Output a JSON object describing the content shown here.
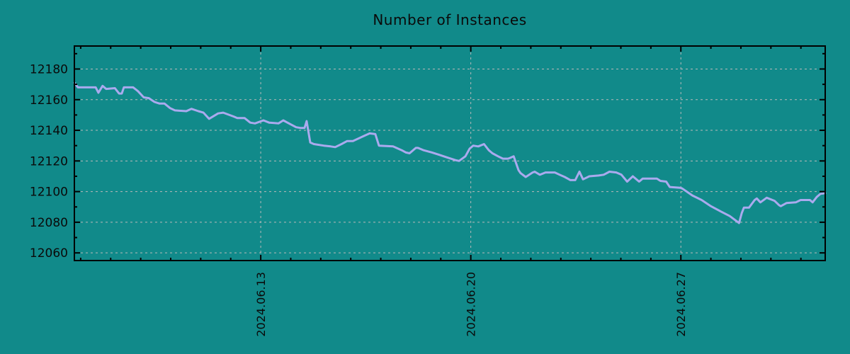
{
  "chart_data": {
    "type": "line",
    "title": "Number of Instances",
    "legend": "none",
    "grid": "dashed",
    "colors": {
      "background": "#118a8a",
      "line": "#aaaaee",
      "gridline": "#b9b9b9",
      "axis": "#000000",
      "text": "#0a0a0a"
    },
    "ylabel": "",
    "xlabel": "",
    "ylim": [
      12055,
      12195
    ],
    "yticks": [
      12060,
      12080,
      12100,
      12120,
      12140,
      12160,
      12180
    ],
    "ytick_minor_step": 10,
    "x_unit": "days since 2024-06-06",
    "xlim_days": [
      0.79,
      25.81
    ],
    "x_minor_ticks_days": [
      1,
      2,
      3,
      4,
      5,
      6,
      7,
      8,
      9,
      10,
      11,
      12,
      13,
      14,
      15,
      16,
      17,
      18,
      19,
      20,
      21,
      22,
      23,
      24,
      25
    ],
    "x_major_ticks": [
      {
        "day": 7,
        "label": "2024.06.13"
      },
      {
        "day": 14,
        "label": "2024.06.20"
      },
      {
        "day": 21,
        "label": "2024.06.27"
      }
    ],
    "series": [
      {
        "name": "instances",
        "points": [
          [
            0.79,
            12171
          ],
          [
            0.91,
            12168
          ],
          [
            1.5,
            12168
          ],
          [
            1.59,
            12164.5
          ],
          [
            1.73,
            12169
          ],
          [
            1.85,
            12167
          ],
          [
            2.14,
            12167.5
          ],
          [
            2.28,
            12164
          ],
          [
            2.37,
            12164
          ],
          [
            2.44,
            12168
          ],
          [
            2.75,
            12168
          ],
          [
            2.91,
            12165.5
          ],
          [
            3.1,
            12161.5
          ],
          [
            3.27,
            12161
          ],
          [
            3.46,
            12158.5
          ],
          [
            3.62,
            12157.5
          ],
          [
            3.79,
            12157.5
          ],
          [
            3.98,
            12154.5
          ],
          [
            4.14,
            12153
          ],
          [
            4.52,
            12152.5
          ],
          [
            4.69,
            12154
          ],
          [
            4.92,
            12152.5
          ],
          [
            5.09,
            12151.5
          ],
          [
            5.28,
            12147.5
          ],
          [
            5.58,
            12151
          ],
          [
            5.75,
            12151.5
          ],
          [
            6.1,
            12149
          ],
          [
            6.22,
            12148
          ],
          [
            6.46,
            12148
          ],
          [
            6.65,
            12145
          ],
          [
            6.81,
            12144.5
          ],
          [
            7.09,
            12146.5
          ],
          [
            7.28,
            12145
          ],
          [
            7.59,
            12144.5
          ],
          [
            7.75,
            12146.5
          ],
          [
            7.99,
            12144
          ],
          [
            8.18,
            12142
          ],
          [
            8.34,
            12141.5
          ],
          [
            8.46,
            12141.5
          ],
          [
            8.53,
            12146
          ],
          [
            8.65,
            12132
          ],
          [
            8.77,
            12131
          ],
          [
            9.1,
            12130
          ],
          [
            9.33,
            12129.5
          ],
          [
            9.48,
            12129
          ],
          [
            9.69,
            12131
          ],
          [
            9.88,
            12133
          ],
          [
            10.07,
            12133
          ],
          [
            10.35,
            12135.5
          ],
          [
            10.63,
            12138
          ],
          [
            10.82,
            12137.5
          ],
          [
            10.94,
            12130
          ],
          [
            11.41,
            12129.5
          ],
          [
            11.7,
            12127
          ],
          [
            11.84,
            12125.5
          ],
          [
            11.96,
            12125
          ],
          [
            12.17,
            12128.5
          ],
          [
            12.24,
            12128.5
          ],
          [
            12.43,
            12127
          ],
          [
            12.71,
            12125.5
          ],
          [
            12.95,
            12124
          ],
          [
            13.18,
            12122.5
          ],
          [
            13.49,
            12120.5
          ],
          [
            13.61,
            12120
          ],
          [
            13.82,
            12123
          ],
          [
            13.96,
            12128
          ],
          [
            14.08,
            12130
          ],
          [
            14.25,
            12129.5
          ],
          [
            14.44,
            12131
          ],
          [
            14.6,
            12127
          ],
          [
            14.72,
            12125
          ],
          [
            14.91,
            12123
          ],
          [
            15.07,
            12121.5
          ],
          [
            15.24,
            12121.5
          ],
          [
            15.31,
            12122
          ],
          [
            15.43,
            12123
          ],
          [
            15.59,
            12114
          ],
          [
            15.66,
            12112
          ],
          [
            15.83,
            12109.5
          ],
          [
            16.06,
            12112.5
          ],
          [
            16.13,
            12113
          ],
          [
            16.3,
            12111
          ],
          [
            16.49,
            12112.5
          ],
          [
            16.8,
            12112.5
          ],
          [
            16.96,
            12111
          ],
          [
            17.13,
            12109.5
          ],
          [
            17.32,
            12107.5
          ],
          [
            17.48,
            12107.5
          ],
          [
            17.62,
            12113
          ],
          [
            17.74,
            12108
          ],
          [
            17.95,
            12110
          ],
          [
            18.26,
            12110.5
          ],
          [
            18.43,
            12111
          ],
          [
            18.62,
            12113
          ],
          [
            18.85,
            12112.5
          ],
          [
            19.02,
            12111
          ],
          [
            19.21,
            12106.5
          ],
          [
            19.4,
            12110
          ],
          [
            19.61,
            12106.5
          ],
          [
            19.73,
            12108.5
          ],
          [
            20.2,
            12108.5
          ],
          [
            20.32,
            12107
          ],
          [
            20.51,
            12106.5
          ],
          [
            20.63,
            12103
          ],
          [
            20.98,
            12102.5
          ],
          [
            21.05,
            12102
          ],
          [
            21.38,
            12097.5
          ],
          [
            21.69,
            12094.5
          ],
          [
            22.0,
            12090.5
          ],
          [
            22.33,
            12087
          ],
          [
            22.63,
            12084
          ],
          [
            22.94,
            12079.5
          ],
          [
            23.03,
            12086
          ],
          [
            23.1,
            12089.5
          ],
          [
            23.27,
            12089.5
          ],
          [
            23.46,
            12094.5
          ],
          [
            23.53,
            12095.5
          ],
          [
            23.65,
            12093
          ],
          [
            23.86,
            12096
          ],
          [
            24.12,
            12094
          ],
          [
            24.28,
            12091
          ],
          [
            24.33,
            12090.5
          ],
          [
            24.52,
            12092.5
          ],
          [
            24.83,
            12093
          ],
          [
            24.99,
            12094.5
          ],
          [
            25.3,
            12094.5
          ],
          [
            25.39,
            12093
          ],
          [
            25.53,
            12096.5
          ],
          [
            25.65,
            12098.5
          ],
          [
            25.81,
            12099
          ]
        ]
      }
    ]
  }
}
